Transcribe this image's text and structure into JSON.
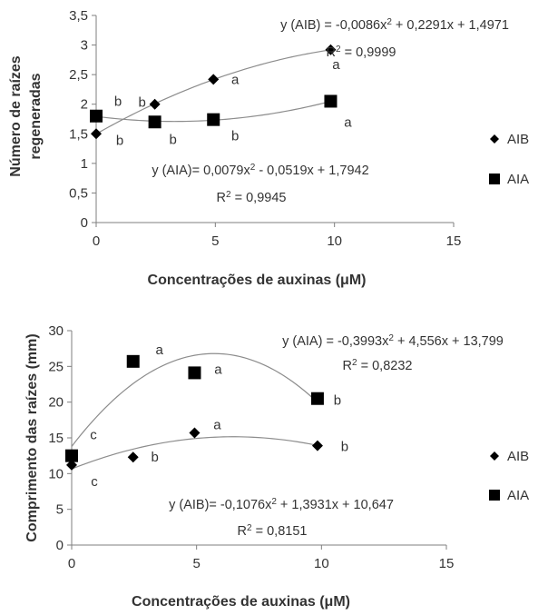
{
  "chart_data": [
    {
      "type": "scatter",
      "ylabel_lines": [
        "Número de raízes",
        "regeneradas"
      ],
      "xlabel": "Concentrações de auxinas (μM)",
      "xlim": [
        0,
        15
      ],
      "ylim": [
        0,
        3.5
      ],
      "x_ticks": [
        "0",
        "5",
        "10",
        "15"
      ],
      "y_ticks": [
        "0",
        "0,5",
        "1",
        "1,5",
        "2",
        "2,5",
        "3",
        "3,5"
      ],
      "series": [
        {
          "name": "AIB",
          "marker": "diamond",
          "x": [
            0,
            2.46,
            4.92,
            9.84
          ],
          "y": [
            1.5,
            2.0,
            2.42,
            2.92
          ],
          "letters": [
            "b",
            "b",
            "a",
            "a"
          ],
          "fit": {
            "a": -0.0086,
            "b": 0.2291,
            "c": 1.4971
          },
          "equation": "y (AIB) = -0,0086x² + 0,2291x + 1,4971",
          "r2": "R² = 0,9999"
        },
        {
          "name": "AIA",
          "marker": "square",
          "x": [
            0,
            2.46,
            4.92,
            9.84
          ],
          "y": [
            1.8,
            1.7,
            1.74,
            2.05
          ],
          "letters": [
            "b",
            "b",
            "b",
            "a"
          ],
          "fit": {
            "a": 0.0079,
            "b": -0.0519,
            "c": 1.7942
          },
          "equation": "y (AIA)= 0,0079x² - 0,0519x + 1,7942",
          "r2": "R² = 0,9945"
        }
      ],
      "legend": "right"
    },
    {
      "type": "scatter",
      "ylabel_lines": [
        "Comprimento das raízes (mm)"
      ],
      "xlabel": "Concentrações de auxinas (μM)",
      "xlim": [
        0,
        15
      ],
      "ylim": [
        0,
        30
      ],
      "x_ticks": [
        "0",
        "5",
        "10",
        "15"
      ],
      "y_ticks": [
        "0",
        "5",
        "10",
        "15",
        "20",
        "25",
        "30"
      ],
      "series": [
        {
          "name": "AIB",
          "marker": "diamond",
          "x": [
            0,
            2.46,
            4.92,
            9.84
          ],
          "y": [
            11.2,
            12.3,
            15.7,
            13.9
          ],
          "letters": [
            "c",
            "b",
            "a",
            "b"
          ],
          "fit": {
            "a": -0.1076,
            "b": 1.3931,
            "c": 10.647
          },
          "equation": "y (AIB)= -0,1076x² + 1,3931x + 10,647",
          "r2": "R² = 0,8151"
        },
        {
          "name": "AIA",
          "marker": "square",
          "x": [
            0,
            2.46,
            4.92,
            9.84
          ],
          "y": [
            12.5,
            25.7,
            24.1,
            20.5
          ],
          "letters": [
            "c",
            "a",
            "a",
            "b"
          ],
          "fit": {
            "a": -0.3993,
            "b": 4.556,
            "c": 13.799
          },
          "equation": "y (AIA) = -0,3993x² + 4,556x + 13,799",
          "r2": "R² = 0,8232"
        }
      ],
      "legend": "right"
    }
  ]
}
